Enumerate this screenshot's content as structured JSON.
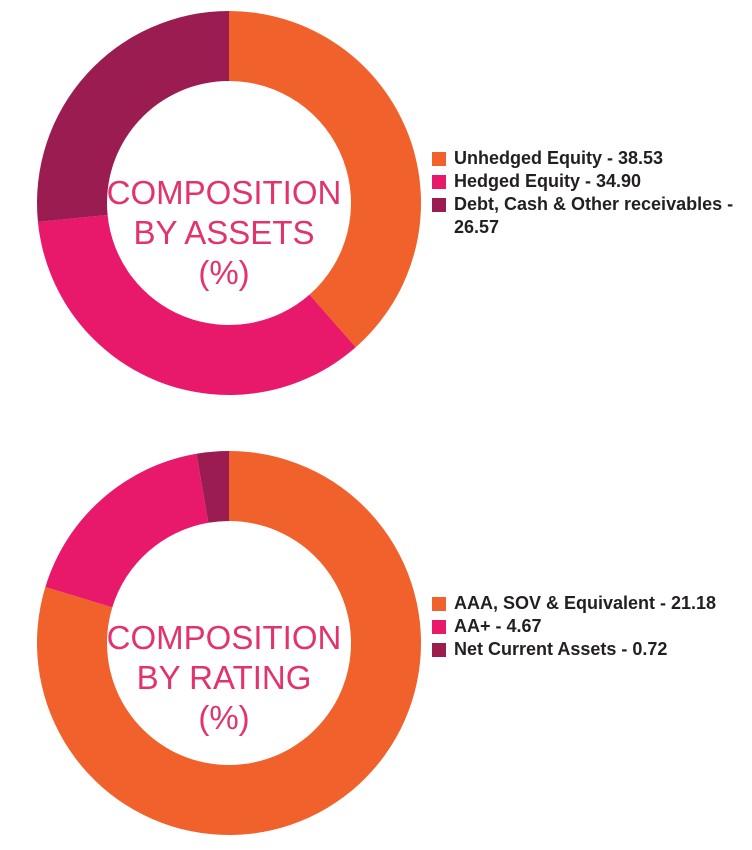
{
  "chart_data": [
    {
      "type": "pie",
      "title": "COMPOSITION BY ASSETS (%)",
      "title_lines": [
        "COMPOSITION",
        "BY ASSETS",
        "(%)"
      ],
      "categories": [
        "Unhedged Equity",
        "Hedged Equity",
        "Debt, Cash & Other receivables"
      ],
      "values": [
        38.53,
        34.9,
        26.57
      ],
      "colors": [
        "#f0612b",
        "#e8196a",
        "#9b1c50"
      ],
      "legend_labels": [
        "Unhedged Equity - 38.53",
        "Hedged Equity - 34.90",
        "Debt, Cash & Other receivables - 26.57"
      ],
      "legend_position": "right",
      "donut": true
    },
    {
      "type": "pie",
      "title": "COMPOSITION BY RATING (%)",
      "title_lines": [
        "COMPOSITION",
        "BY RATING",
        "(%)"
      ],
      "categories": [
        "AAA, SOV & Equivalent",
        "AA+",
        "Net Current Assets"
      ],
      "values": [
        21.18,
        4.67,
        0.72
      ],
      "colors": [
        "#f0612b",
        "#e8196a",
        "#9b1c50"
      ],
      "legend_labels": [
        "AAA, SOV & Equivalent - 21.18",
        "AA+ - 4.67",
        "Net Current Assets - 0.72"
      ],
      "legend_position": "right",
      "donut": true
    }
  ]
}
